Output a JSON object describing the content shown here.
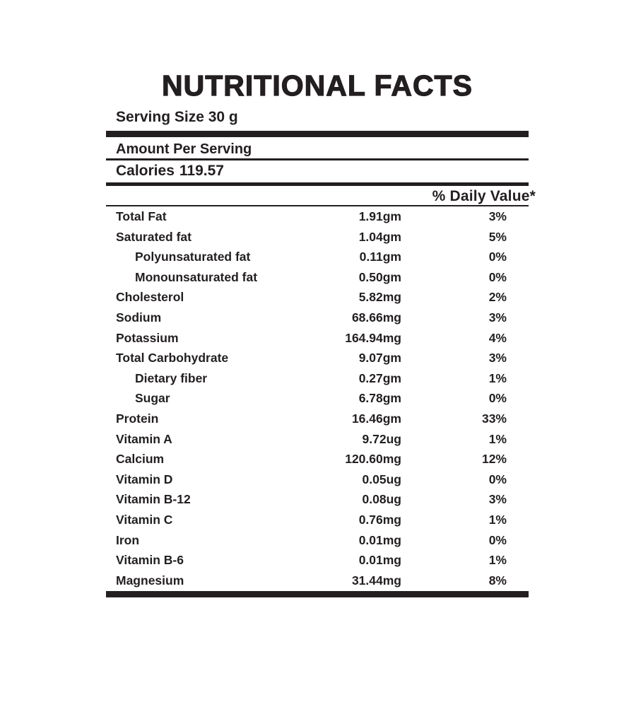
{
  "nutrition_label": {
    "title": "NUTRITIONAL FACTS",
    "serving_size": "Serving Size 30 g",
    "amount_per_serving": "Amount Per Serving",
    "calories": {
      "label": "Calories",
      "value": "119.57"
    },
    "daily_value_header": "% Daily Value*",
    "rows": [
      {
        "name": "Total Fat",
        "amount": "1.91gm",
        "daily_value": "3%",
        "indent": false
      },
      {
        "name": "Saturated fat",
        "amount": "1.04gm",
        "daily_value": "5%",
        "indent": false
      },
      {
        "name": "Polyunsaturated fat",
        "amount": "0.11gm",
        "daily_value": "0%",
        "indent": true
      },
      {
        "name": "Monounsaturated fat",
        "amount": "0.50gm",
        "daily_value": "0%",
        "indent": true
      },
      {
        "name": "Cholesterol",
        "amount": "5.82mg",
        "daily_value": "2%",
        "indent": false
      },
      {
        "name": "Sodium",
        "amount": "68.66mg",
        "daily_value": "3%",
        "indent": false
      },
      {
        "name": "Potassium",
        "amount": "164.94mg",
        "daily_value": "4%",
        "indent": false
      },
      {
        "name": "Total Carbohydrate",
        "amount": "9.07gm",
        "daily_value": "3%",
        "indent": false
      },
      {
        "name": "Dietary fiber",
        "amount": "0.27gm",
        "daily_value": "1%",
        "indent": true
      },
      {
        "name": "Sugar",
        "amount": "6.78gm",
        "daily_value": "0%",
        "indent": true
      },
      {
        "name": "Protein",
        "amount": "16.46gm",
        "daily_value": "33%",
        "indent": false
      },
      {
        "name": "Vitamin A",
        "amount": "9.72ug",
        "daily_value": "1%",
        "indent": false
      },
      {
        "name": "Calcium",
        "amount": "120.60mg",
        "daily_value": "12%",
        "indent": false
      },
      {
        "name": "Vitamin D",
        "amount": "0.05ug",
        "daily_value": "0%",
        "indent": false
      },
      {
        "name": "Vitamin B-12",
        "amount": "0.08ug",
        "daily_value": "3%",
        "indent": false
      },
      {
        "name": "Vitamin C",
        "amount": "0.76mg",
        "daily_value": "1%",
        "indent": false
      },
      {
        "name": "Iron",
        "amount": "0.01mg",
        "daily_value": "0%",
        "indent": false
      },
      {
        "name": "Vitamin B-6",
        "amount": "0.01mg",
        "daily_value": "1%",
        "indent": false
      },
      {
        "name": "Magnesium",
        "amount": "31.44mg",
        "daily_value": "8%",
        "indent": false
      }
    ],
    "colors": {
      "text": "#231f20",
      "background": "#ffffff"
    }
  }
}
